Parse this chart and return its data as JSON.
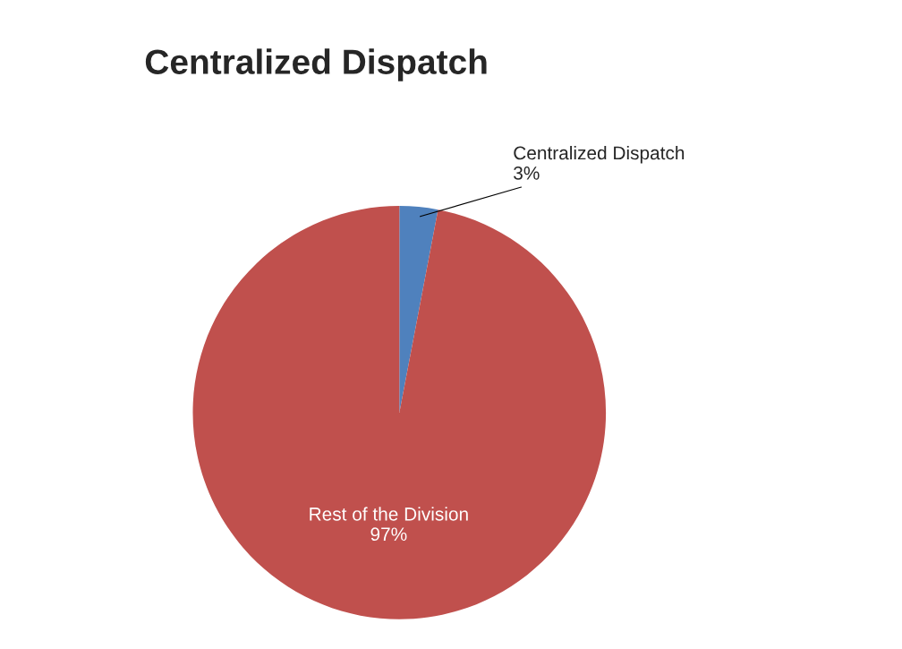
{
  "chart_data": {
    "type": "pie",
    "title": "Centralized Dispatch",
    "categories": [
      "Centralized Dispatch",
      "Rest of the Division"
    ],
    "values": [
      3,
      97
    ],
    "colors": [
      "#4f81bd",
      "#c0504d"
    ],
    "value_labels": [
      "3%",
      "97%"
    ],
    "legend": false
  }
}
